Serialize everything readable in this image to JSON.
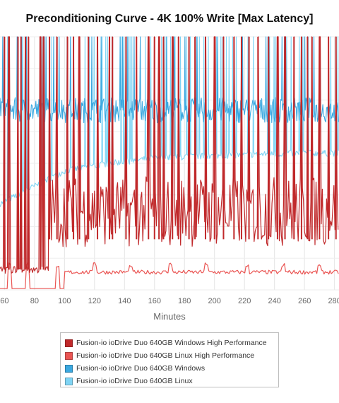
{
  "chart_data": {
    "type": "line",
    "title": "Preconditioning Curve - 4K 100% Write [Max Latency]",
    "xlabel": "Minutes",
    "ylabel": "",
    "xlim": [
      57,
      283
    ],
    "ylim": [
      0,
      100
    ],
    "x_ticks": [
      60,
      80,
      100,
      120,
      140,
      160,
      180,
      200,
      220,
      240,
      260,
      280
    ],
    "grid": true,
    "legend_position": "bottom",
    "series": [
      {
        "name": "Fusion-io ioDrive Duo 640GB Windows High Performance",
        "color": "#c0282a",
        "baseline_before": 8,
        "baseline_after": 25,
        "step_x": 90,
        "spikes": [
          60,
          63,
          69,
          71,
          74,
          76,
          84,
          86,
          90,
          95,
          102,
          106,
          110,
          116,
          122,
          130,
          132,
          141,
          148,
          156,
          160,
          163,
          166,
          172,
          176,
          183,
          187,
          194,
          200,
          206,
          213,
          218,
          223,
          229,
          236,
          242,
          247,
          253,
          258,
          262,
          265,
          270,
          276,
          281
        ],
        "spike_top": 100
      },
      {
        "name": "Fusion-io ioDrive Duo 640GB Linux High Performance",
        "color": "#ea5553",
        "baseline_before": 0.5,
        "baseline_after": 7,
        "step_x": 100,
        "bumps": [
          63,
          75,
          95,
          120,
          144,
          171,
          195,
          222,
          246,
          270
        ],
        "bump_top": 11
      },
      {
        "name": "Fusion-io ioDrive Duo 640GB Windows",
        "color": "#3aa8e0",
        "band_low": 66,
        "band_high": 76,
        "spike_top": 100
      },
      {
        "name": "Fusion-io ioDrive Duo 640GB Linux",
        "color": "#7fd4f4",
        "trend": [
          [
            57,
            34
          ],
          [
            100,
            47
          ],
          [
            130,
            50
          ],
          [
            160,
            52
          ],
          [
            200,
            53
          ],
          [
            260,
            54
          ],
          [
            283,
            54
          ]
        ],
        "spike_top": 100
      }
    ]
  }
}
